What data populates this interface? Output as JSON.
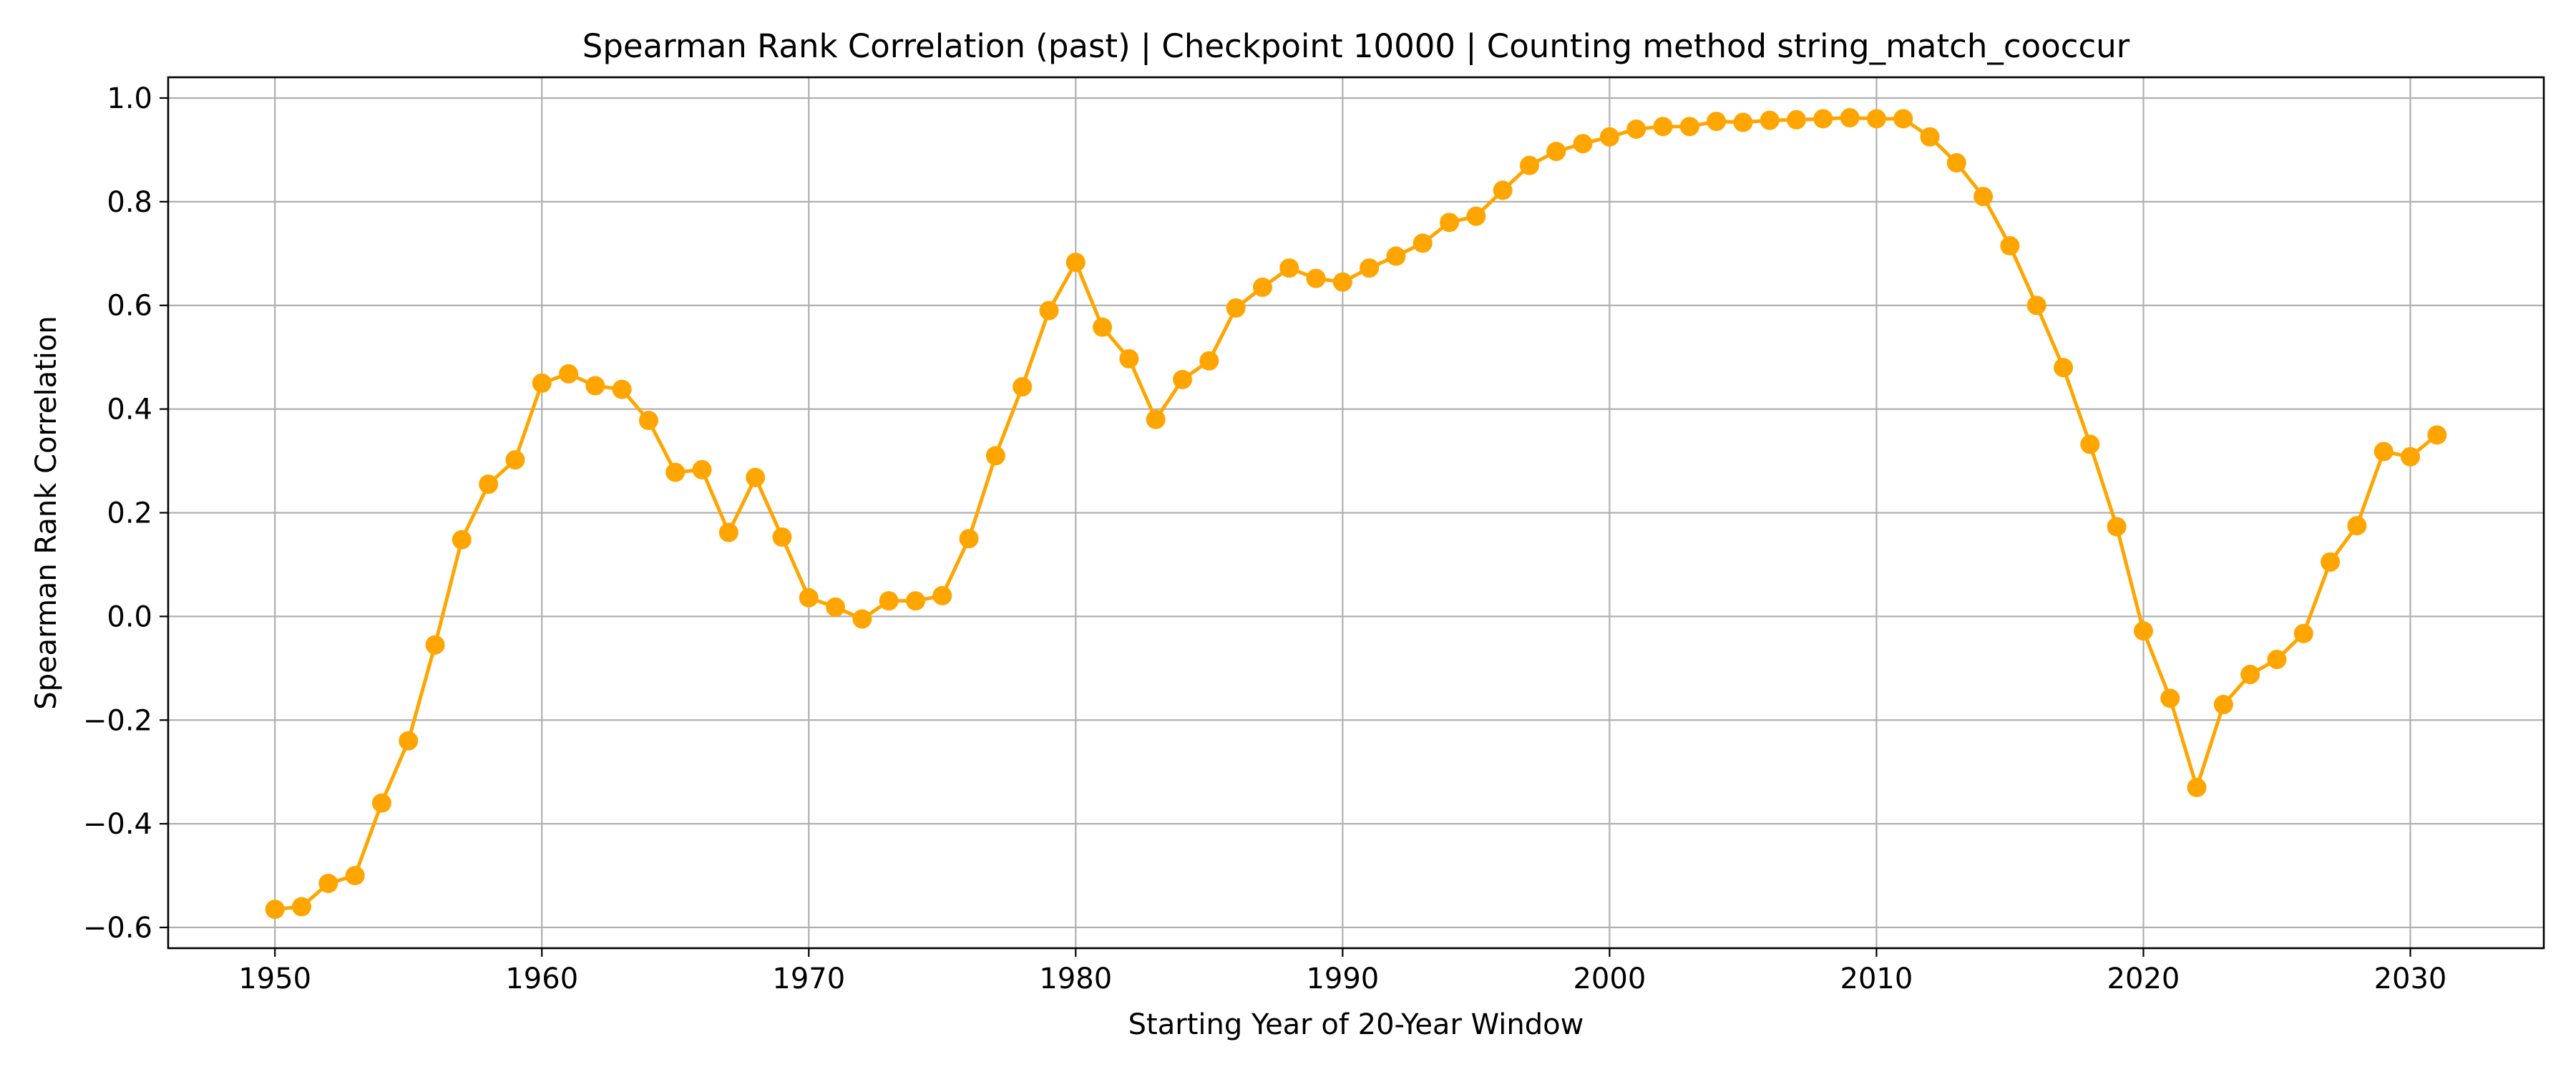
{
  "chart_data": {
    "type": "line",
    "title": "Spearman Rank Correlation (past) | Checkpoint 10000 | Counting method string_match_cooccur",
    "xlabel": "Starting Year of 20-Year Window",
    "ylabel": "Spearman Rank Correlation",
    "xlim": [
      1946,
      2035
    ],
    "ylim": [
      -0.64,
      1.04
    ],
    "xticks": [
      1950,
      1960,
      1970,
      1980,
      1990,
      2000,
      2010,
      2020,
      2030
    ],
    "yticks": [
      -0.6,
      -0.4,
      -0.2,
      0.0,
      0.2,
      0.4,
      0.6,
      0.8,
      1.0
    ],
    "ytick_labels": [
      "−0.6",
      "−0.4",
      "−0.2",
      "0.0",
      "0.2",
      "0.4",
      "0.6",
      "0.8",
      "1.0"
    ],
    "grid": true,
    "line_color": "#FFA500",
    "marker": "circle",
    "x": [
      1950,
      1951,
      1952,
      1953,
      1954,
      1955,
      1956,
      1957,
      1958,
      1959,
      1960,
      1961,
      1962,
      1963,
      1964,
      1965,
      1966,
      1967,
      1968,
      1969,
      1970,
      1971,
      1972,
      1973,
      1974,
      1975,
      1976,
      1977,
      1978,
      1979,
      1980,
      1981,
      1982,
      1983,
      1984,
      1985,
      1986,
      1987,
      1988,
      1989,
      1990,
      1991,
      1992,
      1993,
      1994,
      1995,
      1996,
      1997,
      1998,
      1999,
      2000,
      2001,
      2002,
      2003,
      2004,
      2005,
      2006,
      2007,
      2008,
      2009,
      2010,
      2011,
      2012,
      2013,
      2014,
      2015,
      2016,
      2017,
      2018,
      2019,
      2020,
      2021,
      2022,
      2023,
      2024,
      2025,
      2026,
      2027,
      2028,
      2029,
      2030,
      2031
    ],
    "y": [
      -0.565,
      -0.56,
      -0.515,
      -0.5,
      -0.36,
      -0.24,
      -0.055,
      0.148,
      0.255,
      0.302,
      0.45,
      0.468,
      0.445,
      0.438,
      0.378,
      0.278,
      0.283,
      0.162,
      0.268,
      0.153,
      0.036,
      0.018,
      -0.005,
      0.03,
      0.03,
      0.04,
      0.15,
      0.31,
      0.443,
      0.59,
      0.683,
      0.558,
      0.497,
      0.38,
      0.457,
      0.493,
      0.595,
      0.635,
      0.672,
      0.652,
      0.645,
      0.672,
      0.695,
      0.72,
      0.76,
      0.772,
      0.822,
      0.87,
      0.897,
      0.912,
      0.925,
      0.94,
      0.945,
      0.945,
      0.955,
      0.953,
      0.957,
      0.958,
      0.96,
      0.962,
      0.96,
      0.96,
      0.925,
      0.875,
      0.81,
      0.715,
      0.6,
      0.48,
      0.332,
      0.173,
      -0.028,
      -0.158,
      -0.33,
      -0.17,
      -0.112,
      -0.083,
      -0.033,
      0.105,
      0.175,
      0.318,
      0.308,
      0.35
    ]
  }
}
